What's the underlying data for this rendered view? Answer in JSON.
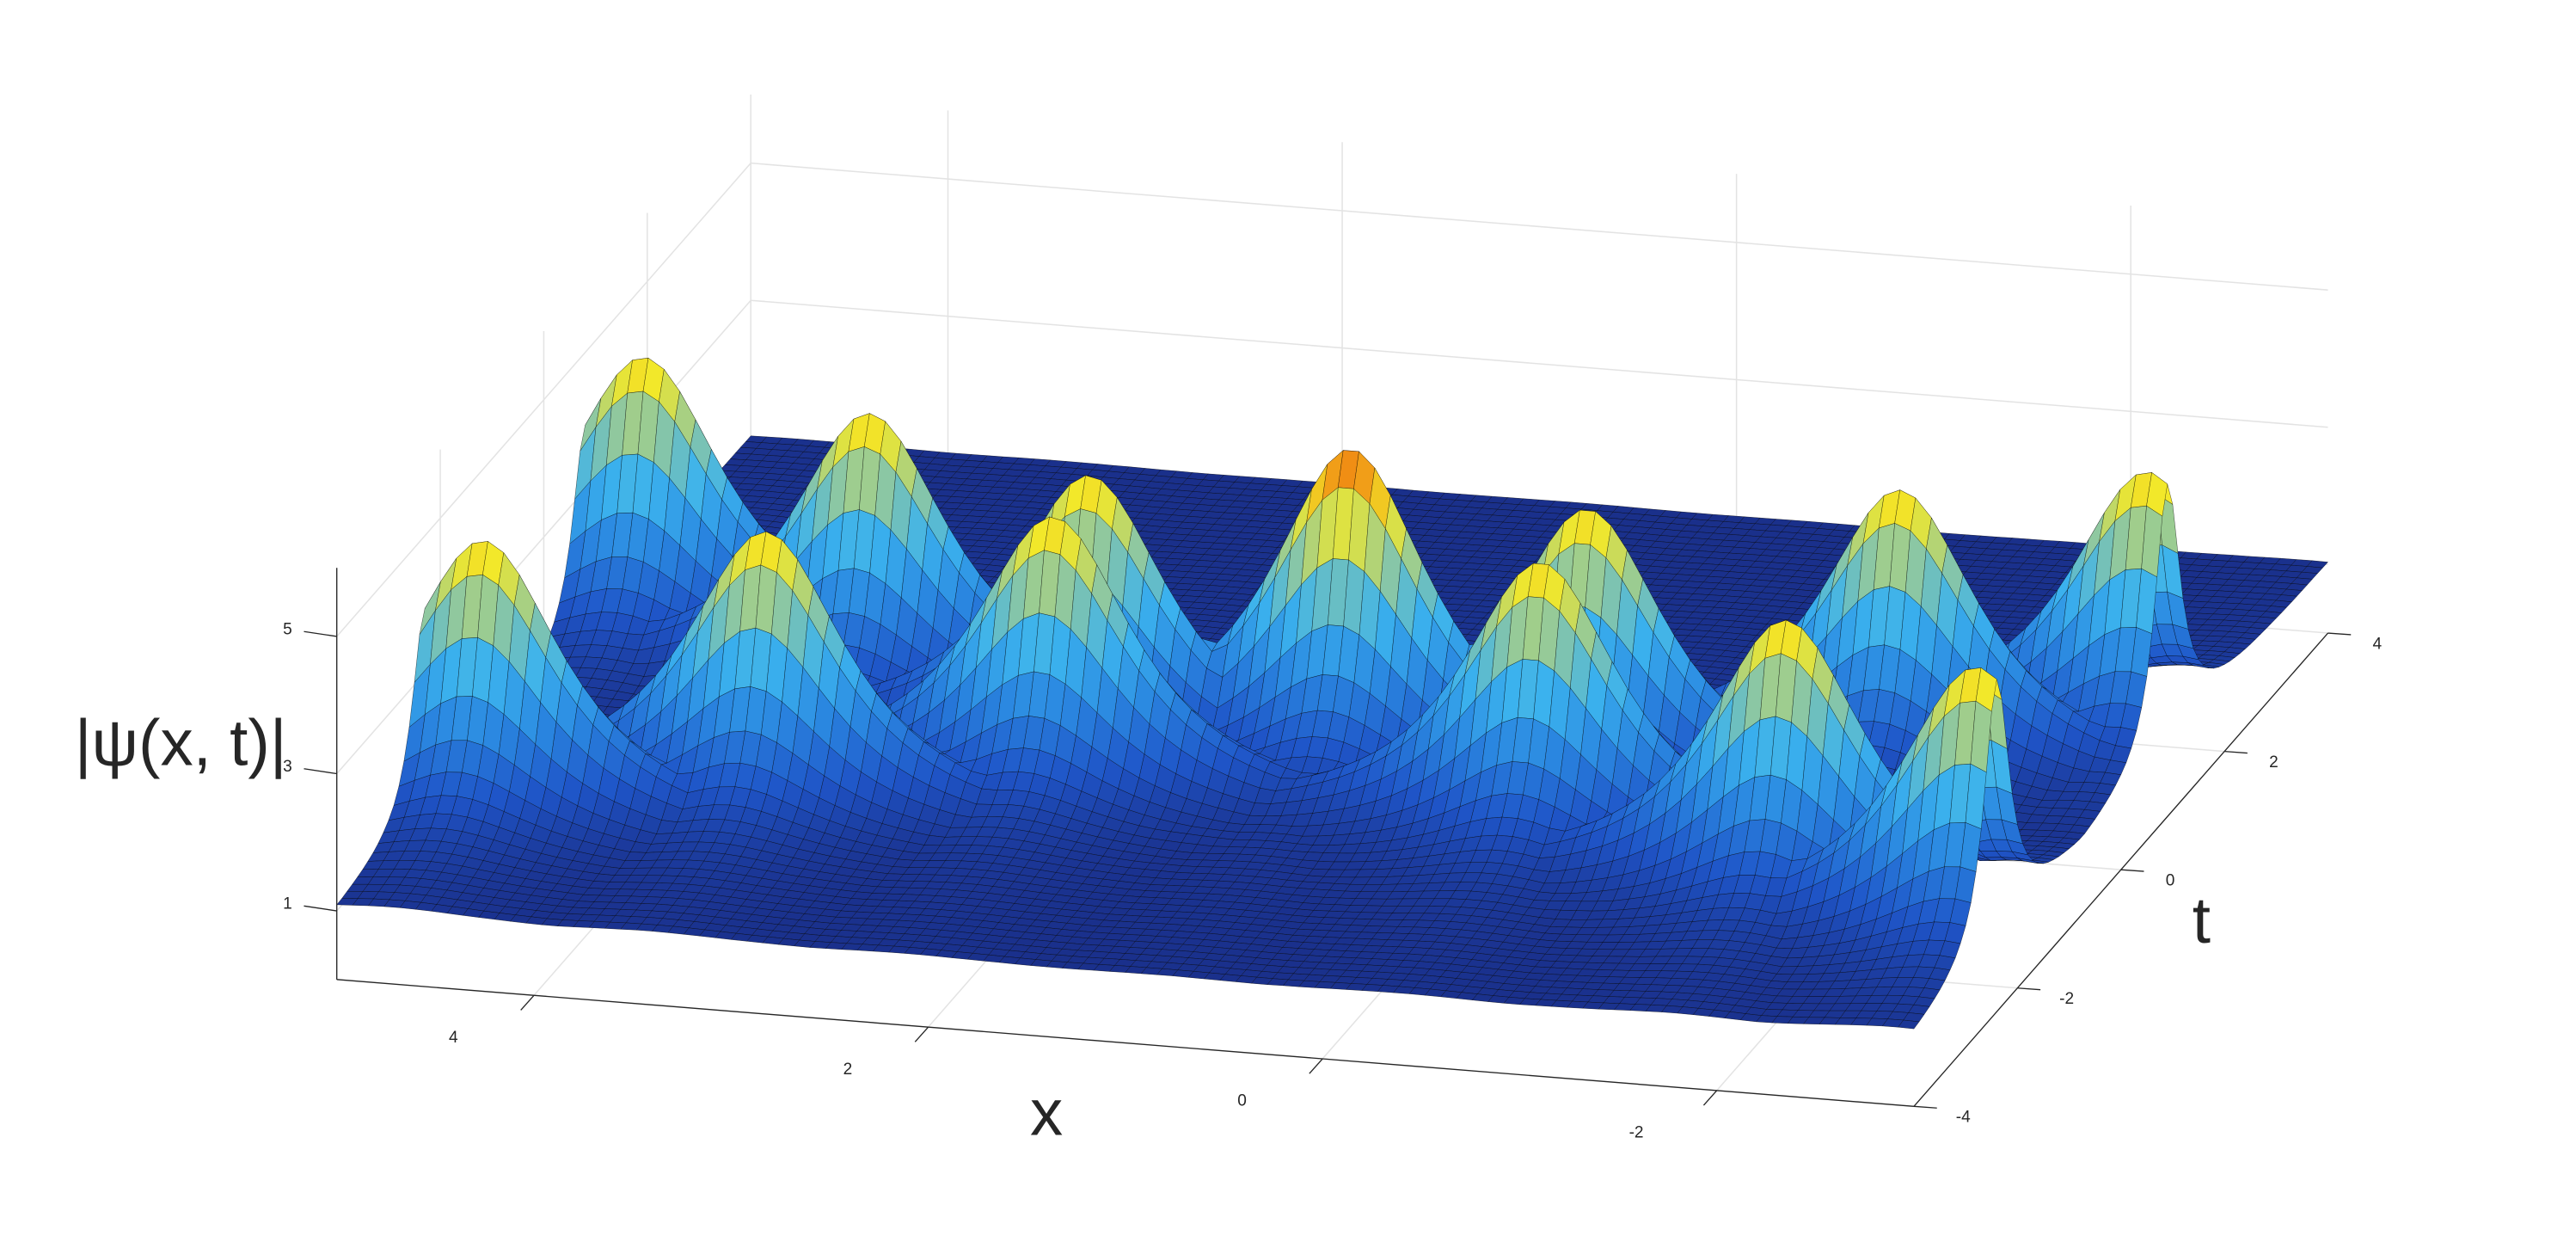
{
  "chart_data": {
    "type": "surface",
    "xlabel": "x",
    "ylabel": "t",
    "zlabel": "|ψ(x, t)|",
    "xlim": [
      -3,
      5
    ],
    "ylim": [
      -4,
      4
    ],
    "zlim": [
      0,
      6
    ],
    "xticks": [
      4,
      2,
      0,
      -2
    ],
    "yticks": [
      -4,
      -2,
      0,
      2,
      4
    ],
    "zticks": [
      1,
      3,
      5
    ],
    "grid": true,
    "base": 1,
    "colormap": [
      "#1a2f8a",
      "#1f55c8",
      "#2a86e0",
      "#3bb2ee",
      "#8fc8a0",
      "#f2e82a",
      "#f07d10"
    ],
    "peaks": [
      {
        "x": 4.7,
        "t": -2.3,
        "z": 5
      },
      {
        "x": 3.4,
        "t": -1.8,
        "z": 5
      },
      {
        "x": 2.1,
        "t": -1.2,
        "z": 5
      },
      {
        "x": -0.4,
        "t": -1.3,
        "z": 5
      },
      {
        "x": -1.8,
        "t": -1.9,
        "z": 5
      },
      {
        "x": -2.9,
        "t": -2.4,
        "z": 5
      },
      {
        "x": 4.7,
        "t": 0.8,
        "z": 5
      },
      {
        "x": 3.4,
        "t": 0.2,
        "z": 5
      },
      {
        "x": 2.1,
        "t": -0.5,
        "z": 5
      },
      {
        "x": 0.8,
        "t": -0.4,
        "z": 5.6
      },
      {
        "x": -0.4,
        "t": -0.4,
        "z": 5
      },
      {
        "x": -1.8,
        "t": 0.3,
        "z": 5
      },
      {
        "x": -2.9,
        "t": 0.9,
        "z": 5
      }
    ]
  }
}
